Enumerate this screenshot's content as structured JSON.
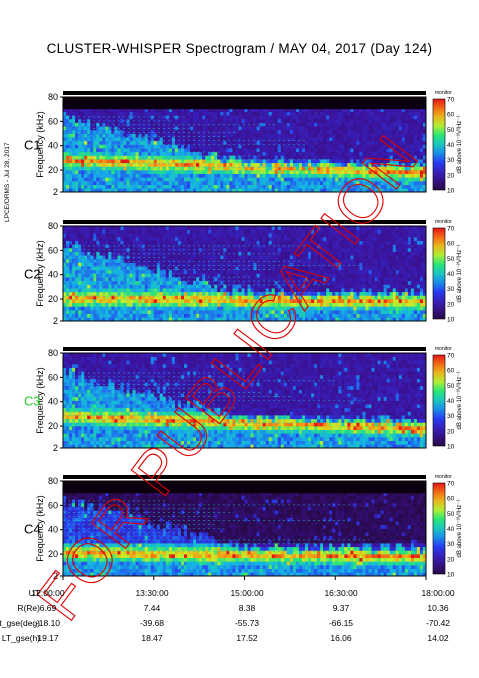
{
  "title": "CLUSTER-WHISPER Spectrogram / MAY 04, 2017 (Day 124)",
  "side_note": "LPCE/ORMS - Jul 28, 2017",
  "watermark": "FOR PUBLICATION",
  "chart_data": [
    {
      "type": "heatmap",
      "panel": "C1",
      "panel_color": "#000000",
      "ylabel": "Frequency (kHz)",
      "yticks": [
        2,
        20,
        40,
        60,
        80
      ],
      "ylim": [
        2,
        80
      ],
      "colorbar": {
        "ticks": [
          10,
          20,
          30,
          40,
          50,
          60,
          70
        ],
        "label": "dB above 10⁻⁸V²Hz⁻¹",
        "top_label": "monitor"
      }
    },
    {
      "type": "heatmap",
      "panel": "C2",
      "panel_color": "#000000",
      "ylabel": "Frequency (kHz)",
      "yticks": [
        2,
        20,
        40,
        60,
        80
      ],
      "ylim": [
        2,
        80
      ],
      "colorbar": {
        "ticks": [
          10,
          20,
          30,
          40,
          50,
          60,
          70
        ],
        "label": "dB above 10⁻⁸V²Hz⁻¹",
        "top_label": "monitor"
      }
    },
    {
      "type": "heatmap",
      "panel": "C3",
      "panel_color": "#22cc22",
      "ylabel": "Frequency (kHz)",
      "yticks": [
        2,
        20,
        40,
        60,
        80
      ],
      "ylim": [
        2,
        80
      ],
      "colorbar": {
        "ticks": [
          10,
          20,
          30,
          40,
          50,
          60,
          70
        ],
        "label": "dB above 10⁻⁸V²Hz⁻¹",
        "top_label": "monitor"
      }
    },
    {
      "type": "heatmap",
      "panel": "C4",
      "panel_color": "#000000",
      "ylabel": "Frequency (kHz)",
      "yticks": [
        2,
        20,
        40,
        60,
        80
      ],
      "ylim": [
        2,
        80
      ],
      "colorbar": {
        "ticks": [
          10,
          20,
          30,
          40,
          50,
          60,
          70
        ],
        "label": "dB above 10⁻⁸V²Hz⁻¹",
        "top_label": "monitor"
      }
    }
  ],
  "ephemeris": {
    "rows": [
      {
        "label": "UT",
        "values": [
          "12:00:00",
          "13:30:00",
          "15:00:00",
          "16:30:00",
          "18:00:00"
        ]
      },
      {
        "label": "R(Re)",
        "values": [
          "6.69",
          "7.44",
          "8.38",
          "9.37",
          "10.36"
        ]
      },
      {
        "label": "Lat_gse(deg)",
        "values": [
          "-18.10",
          "-39.68",
          "-55.73",
          "-66.15",
          "-70.42"
        ]
      },
      {
        "label": "LT_gse(h)",
        "values": [
          "19.17",
          "18.47",
          "17.52",
          "16.06",
          "14.02"
        ]
      }
    ]
  },
  "colors": {
    "watermark": "#dd0000",
    "background_fill": "#2a0a4a"
  }
}
